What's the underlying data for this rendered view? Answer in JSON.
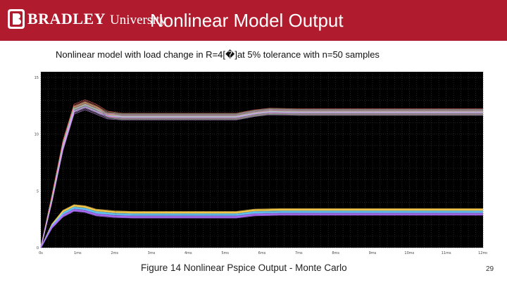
{
  "header": {
    "logo": {
      "brand": "BRADLEY",
      "sub": "University"
    },
    "title": "Nonlinear Model Output"
  },
  "subtitle": "Nonlinear model with load change in R=4[�]at 5% tolerance with n=50 samples",
  "figure": {
    "caption": "Figure 14 Nonlinear Pspice Output - Monte Carlo",
    "page_number": "29"
  },
  "colors": {
    "header_bg": "#b01c2e",
    "plot_bg": "#000000",
    "grid": "#3a3a3a"
  },
  "chart_data": {
    "type": "line",
    "title": "",
    "xlabel": "",
    "ylabel": "",
    "x_ticks": [
      "0s",
      "1ms",
      "2ms",
      "3ms",
      "4ms",
      "5ms",
      "6ms",
      "7ms",
      "8ms",
      "9ms",
      "10ms",
      "11ms",
      "12ms"
    ],
    "y_ticks": [
      "0",
      "5",
      "10",
      "15"
    ],
    "xlim": [
      0,
      12
    ],
    "ylim": [
      0,
      15.5
    ],
    "grid": true,
    "series": [
      {
        "color": "#ff6a6a",
        "x": [
          0,
          0.3,
          0.6,
          0.9,
          1.2,
          1.5,
          1.8,
          2.2,
          3,
          4,
          5,
          5.3,
          5.8,
          6.2,
          7,
          9,
          12
        ],
        "y": [
          0,
          4.5,
          9.2,
          12.4,
          12.8,
          12.4,
          11.8,
          11.6,
          11.6,
          11.6,
          11.6,
          11.6,
          11.9,
          12.05,
          12.0,
          12.0,
          12.0
        ]
      },
      {
        "color": "#7fd07f",
        "x": [
          0,
          0.3,
          0.6,
          0.9,
          1.2,
          1.5,
          1.8,
          2.2,
          3,
          4,
          5,
          5.3,
          5.8,
          6.2,
          7,
          9,
          12
        ],
        "y": [
          0,
          4.3,
          9.0,
          12.2,
          12.6,
          12.2,
          11.7,
          11.55,
          11.55,
          11.55,
          11.55,
          11.55,
          11.85,
          12.0,
          11.95,
          11.95,
          11.95
        ]
      },
      {
        "color": "#d7a0ff",
        "x": [
          0,
          0.3,
          0.6,
          0.9,
          1.2,
          1.5,
          1.8,
          2.2,
          3,
          4,
          5,
          5.3,
          5.8,
          6.2,
          7,
          9,
          12
        ],
        "y": [
          0,
          4.1,
          8.8,
          12.0,
          12.4,
          12.0,
          11.6,
          11.5,
          11.5,
          11.5,
          11.5,
          11.5,
          11.8,
          11.95,
          11.9,
          11.9,
          11.9
        ]
      },
      {
        "color": "#ffd24d",
        "x": [
          0,
          0.3,
          0.6,
          0.9,
          1.2,
          1.5,
          2.0,
          2.5,
          3,
          4,
          5,
          5.3,
          5.8,
          6.5,
          9,
          12
        ],
        "y": [
          0,
          2.0,
          3.2,
          3.7,
          3.6,
          3.3,
          3.15,
          3.1,
          3.1,
          3.1,
          3.1,
          3.1,
          3.3,
          3.35,
          3.35,
          3.35
        ]
      },
      {
        "color": "#66ccff",
        "x": [
          0,
          0.3,
          0.6,
          0.9,
          1.2,
          1.5,
          2.0,
          2.5,
          3,
          4,
          5,
          5.3,
          5.8,
          6.5,
          9,
          12
        ],
        "y": [
          0,
          1.9,
          3.0,
          3.5,
          3.4,
          3.1,
          2.95,
          2.9,
          2.9,
          2.9,
          2.9,
          2.9,
          3.1,
          3.15,
          3.15,
          3.15
        ]
      },
      {
        "color": "#b070ff",
        "x": [
          0,
          0.3,
          0.6,
          0.9,
          1.2,
          1.5,
          2.0,
          2.5,
          3,
          4,
          5,
          5.3,
          5.8,
          6.5,
          9,
          12
        ],
        "y": [
          0,
          1.8,
          2.8,
          3.3,
          3.2,
          2.9,
          2.75,
          2.7,
          2.7,
          2.7,
          2.7,
          2.7,
          2.9,
          2.95,
          2.95,
          2.95
        ]
      }
    ]
  }
}
